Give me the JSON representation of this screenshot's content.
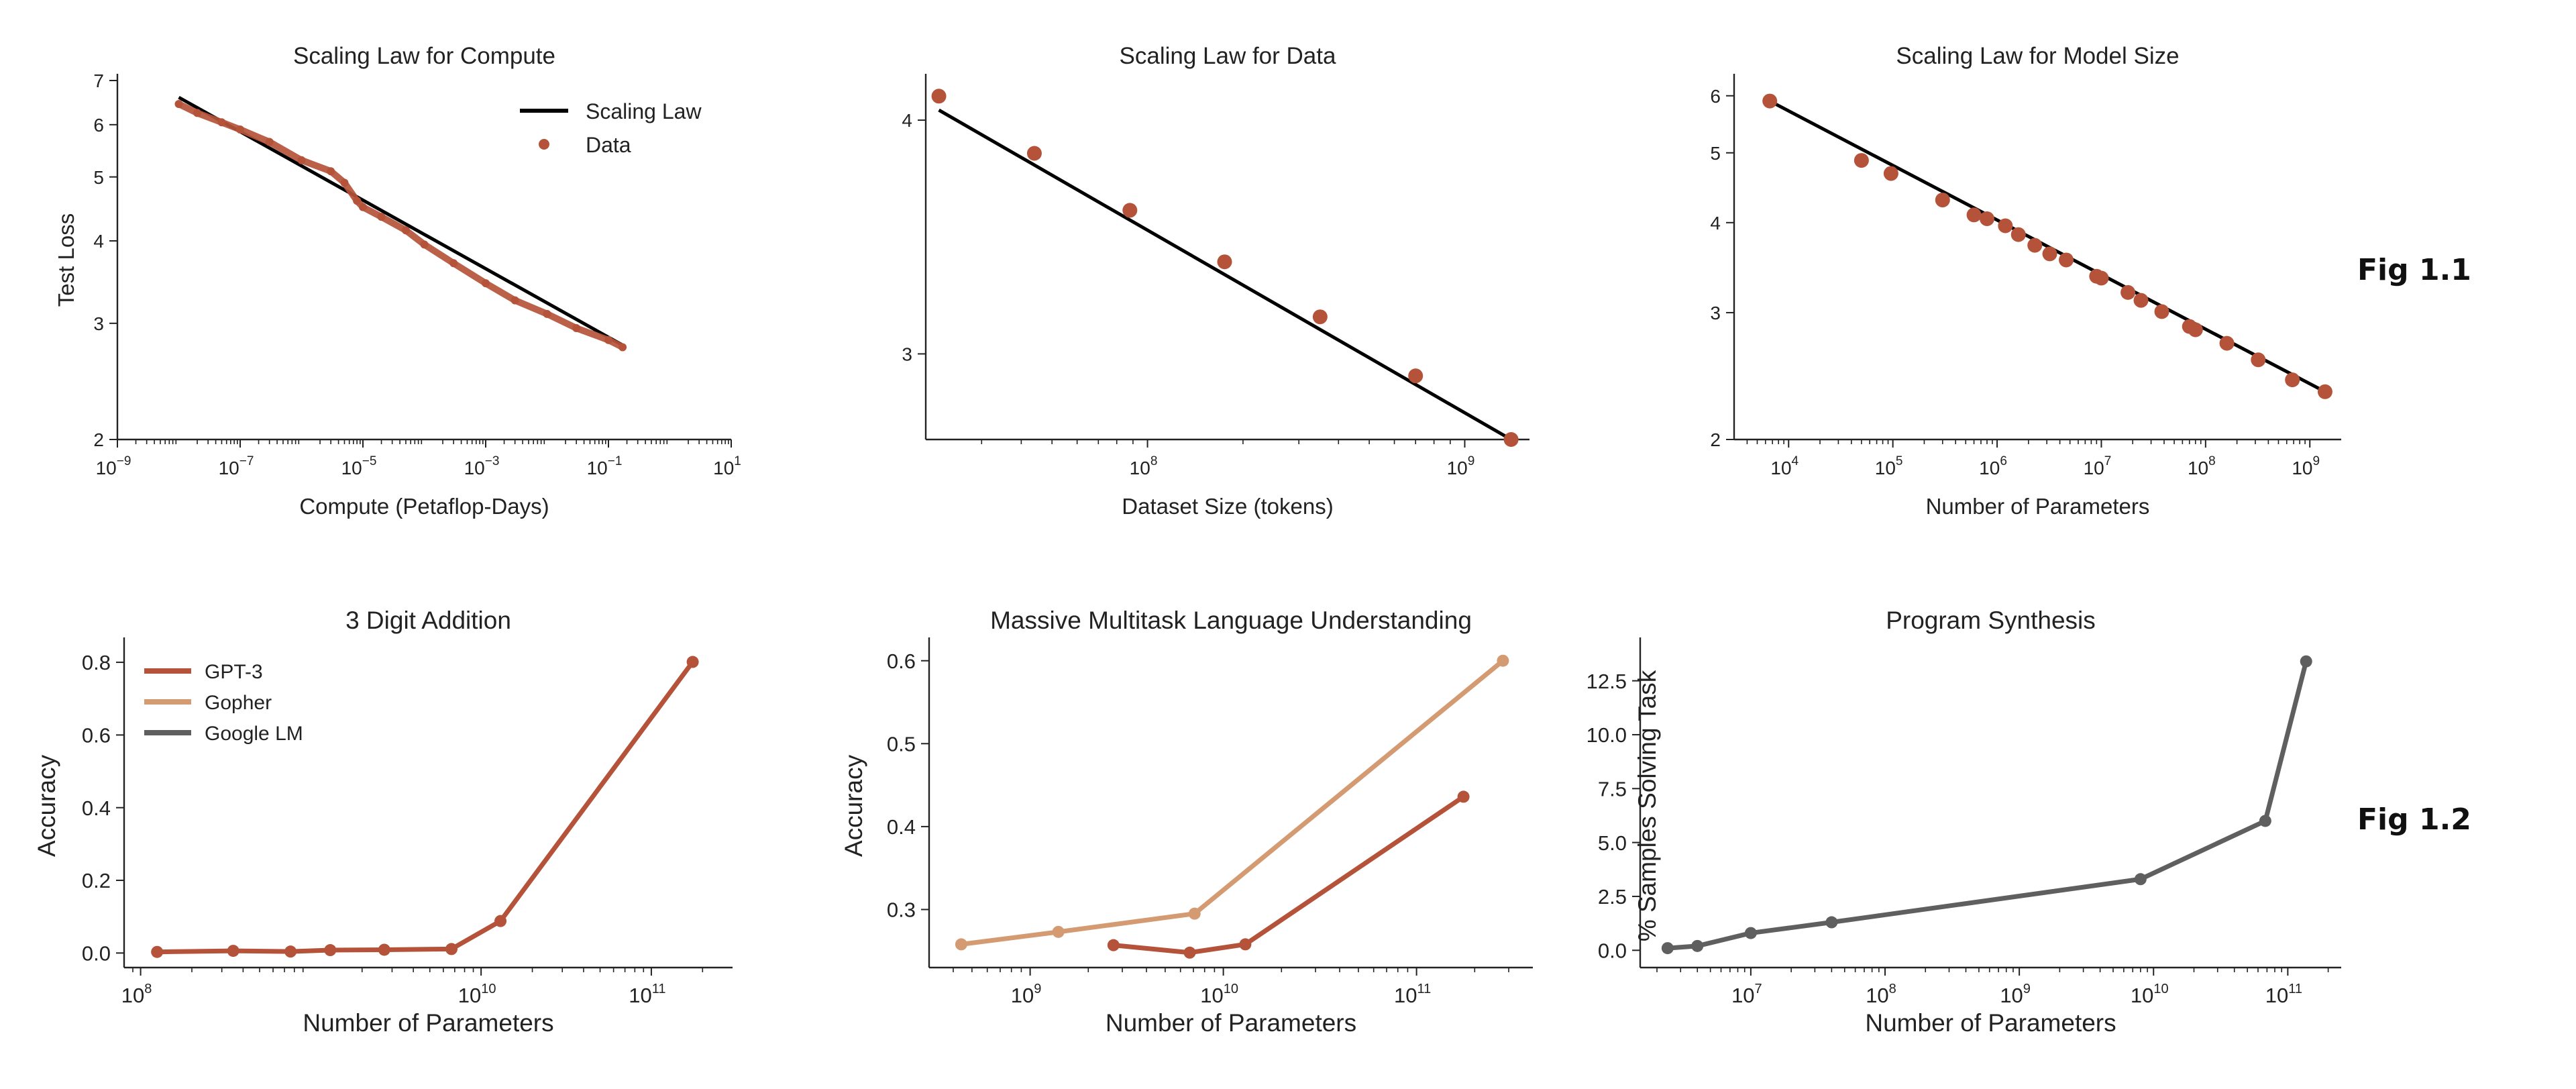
{
  "figure_labels": [
    "Fig 1.1",
    "Fig 1.2"
  ],
  "colors": {
    "gpt3": "#b5533a",
    "gopher": "#d49a72",
    "google": "#5f5f5f",
    "law": "#000000",
    "axis": "#222222"
  },
  "chart_data": [
    {
      "type": "line",
      "title": "Scaling Law for Compute",
      "xlabel": "Compute (Petaflop-Days)",
      "ylabel": "Test Loss",
      "xscale": "log",
      "yscale": "log",
      "xlim": [
        1e-09,
        10
      ],
      "ylim": [
        2,
        7
      ],
      "xticks": [
        1e-09,
        1e-07,
        1e-05,
        0.001,
        0.1,
        10
      ],
      "xtick_labels": [
        [
          "10",
          "−9"
        ],
        [
          "10",
          "−7"
        ],
        [
          "10",
          "−5"
        ],
        [
          "10",
          "−3"
        ],
        [
          "10",
          "−1"
        ],
        [
          "10",
          "1"
        ]
      ],
      "yticks": [
        2,
        3,
        4,
        5,
        6,
        7
      ],
      "ytick_labels": [
        "2",
        "3",
        "4",
        "5",
        "6",
        "7"
      ],
      "legend": "top-right",
      "series": [
        {
          "name": "Scaling Law",
          "kind": "line",
          "x": [
            1e-08,
            0.17
          ],
          "y": [
            6.6,
            2.78
          ]
        },
        {
          "name": "Data",
          "kind": "dense",
          "x": [
            1e-08,
            2e-08,
            5e-08,
            1e-07,
            3e-07,
            1e-06,
            3e-06,
            5e-06,
            8e-06,
            1e-05,
            2e-05,
            5e-05,
            0.0001,
            0.0003,
            0.001,
            0.003,
            0.01,
            0.03,
            0.1,
            0.17
          ],
          "y": [
            6.45,
            6.25,
            6.05,
            5.9,
            5.65,
            5.3,
            5.1,
            4.9,
            4.6,
            4.5,
            4.35,
            4.15,
            3.95,
            3.7,
            3.45,
            3.25,
            3.1,
            2.95,
            2.83,
            2.76
          ]
        }
      ]
    },
    {
      "type": "line",
      "title": "Scaling Law for Data",
      "xlabel": "Dataset Size (tokens)",
      "ylabel": "",
      "xscale": "log",
      "yscale": "log",
      "xlim": [
        20000000.0,
        1600000000.0
      ],
      "ylim": [
        2.7,
        4.2
      ],
      "xticks": [
        100000000.0,
        1000000000.0
      ],
      "xtick_labels": [
        [
          "10",
          "8"
        ],
        [
          "10",
          "9"
        ]
      ],
      "yticks": [
        3,
        4
      ],
      "ytick_labels": [
        "3",
        "4"
      ],
      "series": [
        {
          "name": "Scaling Law",
          "kind": "line",
          "x": [
            22000000.0,
            1400000000.0
          ],
          "y": [
            4.05,
            2.7
          ]
        },
        {
          "name": "Data",
          "kind": "scatter",
          "x": [
            22000000.0,
            44000000.0,
            88000000.0,
            175000000.0,
            350000000.0,
            700000000.0,
            1400000000.0
          ],
          "y": [
            4.12,
            3.84,
            3.58,
            3.36,
            3.14,
            2.92,
            2.7
          ]
        }
      ]
    },
    {
      "type": "line",
      "title": "Scaling Law for Model Size",
      "xlabel": "Number of Parameters",
      "ylabel": "",
      "xscale": "log",
      "yscale": "log",
      "xlim": [
        3000.0,
        2000000000.0
      ],
      "ylim": [
        2,
        6.3
      ],
      "xticks": [
        10000.0,
        100000.0,
        1000000.0,
        10000000.0,
        100000000.0,
        1000000000.0
      ],
      "xtick_labels": [
        [
          "10",
          "4"
        ],
        [
          "10",
          "5"
        ],
        [
          "10",
          "6"
        ],
        [
          "10",
          "7"
        ],
        [
          "10",
          "8"
        ],
        [
          "10",
          "9"
        ]
      ],
      "yticks": [
        2,
        3,
        4,
        5,
        6
      ],
      "ytick_labels": [
        "2",
        "3",
        "4",
        "5",
        "6"
      ],
      "series": [
        {
          "name": "Scaling Law",
          "kind": "line",
          "x": [
            6600.0,
            1400000000.0
          ],
          "y": [
            5.9,
            2.33
          ]
        },
        {
          "name": "Data",
          "kind": "scatter",
          "x": [
            6600.0,
            50000.0,
            96000.0,
            300000.0,
            600000.0,
            800000.0,
            1200000.0,
            1600000.0,
            2300000.0,
            3200000.0,
            4600000.0,
            9000000.0,
            10000000.0,
            18000000.0,
            24000000.0,
            38000000.0,
            70000000.0,
            80000000.0,
            160000000.0,
            320000000.0,
            680000000.0,
            1400000000.0
          ],
          "y": [
            5.9,
            4.88,
            4.68,
            4.3,
            4.1,
            4.05,
            3.96,
            3.85,
            3.72,
            3.62,
            3.55,
            3.37,
            3.35,
            3.2,
            3.12,
            3.01,
            2.87,
            2.84,
            2.72,
            2.58,
            2.42,
            2.33
          ]
        }
      ]
    },
    {
      "type": "line",
      "title": "3 Digit Addition",
      "xlabel": "Number of Parameters",
      "ylabel": "Accuracy",
      "xscale": "log",
      "yscale": "linear",
      "xlim": [
        80000000.0,
        300000000000.0
      ],
      "ylim": [
        -0.04,
        0.85
      ],
      "xticks": [
        100000000.0,
        10000000000.0,
        100000000000.0
      ],
      "xtick_labels": [
        [
          "10",
          "8"
        ],
        [
          "10",
          "10"
        ],
        [
          "10",
          "11"
        ]
      ],
      "yticks": [
        0,
        0.2,
        0.4,
        0.6,
        0.8
      ],
      "ytick_labels": [
        "0.0",
        "0.2",
        "0.4",
        "0.6",
        "0.8"
      ],
      "legend": "top-left",
      "legend_entries": [
        {
          "name": "GPT-3",
          "color": "#b5533a"
        },
        {
          "name": "Gopher",
          "color": "#d49a72"
        },
        {
          "name": "Google LM",
          "color": "#5f5f5f"
        }
      ],
      "series": [
        {
          "name": "GPT-3",
          "color": "#b5533a",
          "x": [
            125000000.0,
            350000000.0,
            760000000.0,
            1300000000.0,
            2700000000.0,
            6700000000.0,
            13000000000.0,
            175000000000.0
          ],
          "y": [
            0.003,
            0.006,
            0.004,
            0.008,
            0.009,
            0.011,
            0.088,
            0.801
          ]
        }
      ]
    },
    {
      "type": "line",
      "title": "Massive Multitask Language Understanding",
      "xlabel": "Number of Parameters",
      "ylabel": "Accuracy",
      "xscale": "log",
      "yscale": "linear",
      "xlim": [
        300000000.0,
        400000000000.0
      ],
      "ylim": [
        0.23,
        0.62
      ],
      "xticks": [
        1000000000.0,
        10000000000.0,
        100000000000.0
      ],
      "xtick_labels": [
        [
          "10",
          "9"
        ],
        [
          "10",
          "10"
        ],
        [
          "10",
          "11"
        ]
      ],
      "yticks": [
        0.3,
        0.4,
        0.5,
        0.6
      ],
      "ytick_labels": [
        "0.3",
        "0.4",
        "0.5",
        "0.6"
      ],
      "series": [
        {
          "name": "Gopher",
          "color": "#d49a72",
          "x": [
            440000000.0,
            1400000000.0,
            7100000000.0,
            280000000000.0
          ],
          "y": [
            0.258,
            0.273,
            0.295,
            0.6
          ]
        },
        {
          "name": "GPT-3",
          "color": "#b5533a",
          "x": [
            2700000000.0,
            6700000000.0,
            13000000000.0,
            175000000000.0
          ],
          "y": [
            0.257,
            0.248,
            0.258,
            0.436
          ]
        }
      ]
    },
    {
      "type": "line",
      "title": "Program Synthesis",
      "xlabel": "Number of Parameters",
      "ylabel": "% Samples Solving Task",
      "xscale": "log",
      "yscale": "linear",
      "xlim": [
        1500000.0,
        250000000000.0
      ],
      "ylim": [
        -0.8,
        14.2
      ],
      "xticks": [
        10000000.0,
        100000000.0,
        1000000000.0,
        10000000000.0,
        100000000000.0
      ],
      "xtick_labels": [
        [
          "10",
          "7"
        ],
        [
          "10",
          "8"
        ],
        [
          "10",
          "9"
        ],
        [
          "10",
          "10"
        ],
        [
          "10",
          "11"
        ]
      ],
      "yticks": [
        0,
        2.5,
        5,
        7.5,
        10,
        12.5
      ],
      "ytick_labels": [
        "0.0",
        "2.5",
        "5.0",
        "7.5",
        "10.0",
        "12.5"
      ],
      "series": [
        {
          "name": "Google LM",
          "color": "#5f5f5f",
          "x": [
            2400000.0,
            4000000.0,
            10000000.0,
            40000000.0,
            8000000000.0,
            68000000000.0,
            137000000000.0
          ],
          "y": [
            0.1,
            0.2,
            0.8,
            1.3,
            3.3,
            6.0,
            13.4
          ]
        }
      ]
    }
  ]
}
